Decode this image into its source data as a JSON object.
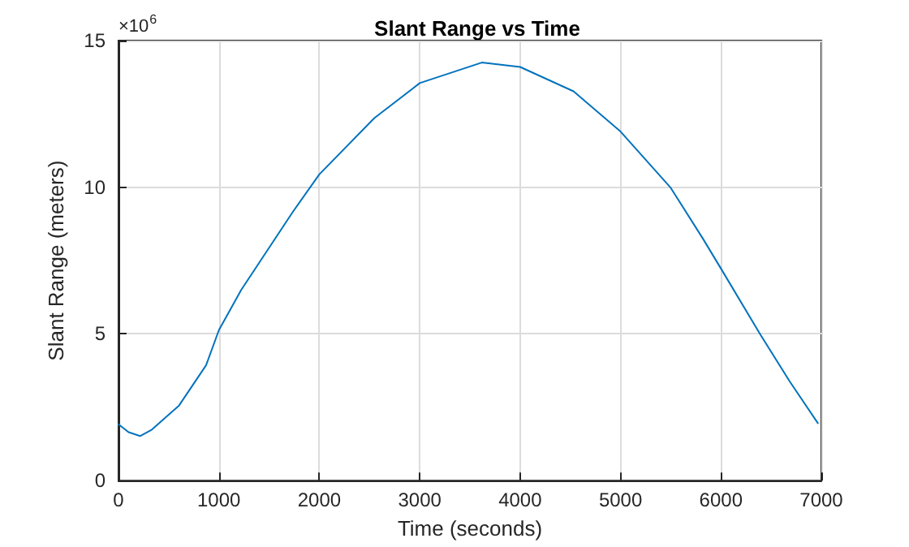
{
  "chart_data": {
    "type": "line",
    "title": "Slant Range vs Time",
    "xlabel": "Time (seconds)",
    "ylabel": "Slant Range (meters)",
    "annotations": [
      "×10$^{6}$"
    ],
    "x": [
      0,
      100,
      215,
      333,
      603,
      872,
      1000,
      1222,
      1734,
      2000,
      2548,
      3000,
      3618,
      4000,
      4532,
      5000,
      5500,
      5822,
      6000,
      6389,
      6685,
      6965
    ],
    "series": [
      {
        "color": "#0072bd",
        "values": [
          1.92,
          1.65,
          1.52,
          1.74,
          2.56,
          3.93,
          5.13,
          6.5,
          9.15,
          10.44,
          12.36,
          13.55,
          14.25,
          14.1,
          13.27,
          11.9,
          9.98,
          8.24,
          7.23,
          5.0,
          3.38,
          1.96
        ]
      }
    ],
    "xlim": [
      0,
      7000
    ],
    "xticks": [
      0,
      1000,
      2000,
      3000,
      4000,
      5000,
      6000,
      7000
    ],
    "ylim": [
      0,
      15
    ],
    "yticks": [
      0,
      5,
      10,
      15
    ],
    "grid": true,
    "marker": "none",
    "line_style": "solid"
  }
}
